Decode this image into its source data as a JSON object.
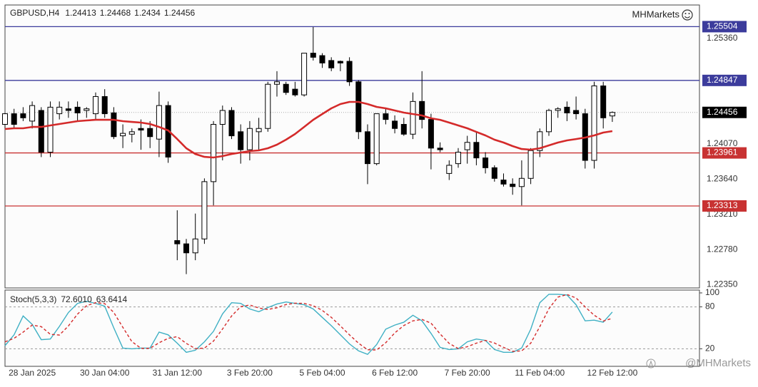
{
  "chart_data": [
    {
      "type": "candlestick",
      "title": "GBPUSD,H4",
      "brand": "MHMarkets",
      "watermark": "@MHMarkets",
      "categories": [
        null,
        null,
        null,
        "28 Jan 2025",
        null,
        null,
        null,
        null,
        null,
        null,
        null,
        "30 Jan 04:00",
        null,
        null,
        null,
        null,
        null,
        null,
        null,
        "31 Jan 12:00",
        null,
        null,
        null,
        null,
        null,
        null,
        null,
        "3 Feb 20:00",
        null,
        null,
        null,
        null,
        null,
        null,
        null,
        "5 Feb 04:00",
        null,
        null,
        null,
        null,
        null,
        null,
        null,
        "6 Feb 12:00",
        null,
        null,
        null,
        null,
        null,
        null,
        null,
        "7 Feb 20:00",
        null,
        null,
        null,
        null,
        null,
        null,
        null,
        "11 Feb 04:00",
        null,
        null,
        null,
        null,
        null,
        null,
        null,
        "12 Feb 12:00"
      ],
      "open": [
        1.2431,
        1.2444,
        1.2444,
        1.2435,
        1.2448,
        1.2397,
        1.2444,
        1.245,
        1.2452,
        1.2448,
        1.2444,
        1.2465,
        1.2445,
        1.2417,
        1.2419,
        1.2426,
        1.2426,
        1.2413,
        1.2454,
        1.2289,
        1.2285,
        1.2274,
        1.2291,
        1.2361,
        1.2431,
        1.2448,
        1.2422,
        1.24,
        1.2422,
        1.2426,
        1.248,
        1.248,
        1.2474,
        1.2467,
        1.2518,
        1.2515,
        1.2509,
        1.2508,
        1.2508,
        1.2483,
        1.2422,
        1.2383,
        1.2444,
        1.2435,
        1.2431,
        1.2419,
        1.2459,
        1.2437,
        1.2402,
        1.2371,
        1.2383,
        1.24,
        1.2409,
        1.239,
        1.2378,
        1.2363,
        1.2358,
        1.2355,
        1.2365,
        1.2399,
        1.2422,
        1.2448,
        1.2452,
        1.2448,
        1.2444,
        1.2387,
        1.2478,
        1.24413
      ],
      "high": [
        1.2445,
        1.245,
        1.2452,
        1.2459,
        1.2452,
        1.2459,
        1.2459,
        1.2459,
        1.2459,
        1.2452,
        1.247,
        1.2474,
        1.2452,
        1.2431,
        1.2426,
        1.2437,
        1.2435,
        1.2471,
        1.2459,
        1.2326,
        1.2291,
        1.2322,
        1.2365,
        1.2435,
        1.2454,
        1.2452,
        1.2431,
        1.2435,
        1.2439,
        1.2483,
        1.2496,
        1.2483,
        1.2483,
        1.2518,
        1.255,
        1.2518,
        1.2513,
        1.2509,
        1.2513,
        1.2485,
        1.2431,
        1.2444,
        1.245,
        1.2442,
        1.2439,
        1.247,
        1.2496,
        1.2444,
        1.2409,
        1.2387,
        1.2402,
        1.2417,
        1.2422,
        1.2397,
        1.2381,
        1.2371,
        1.2365,
        1.2387,
        1.2402,
        1.2426,
        1.245,
        1.2452,
        1.2459,
        1.2465,
        1.245,
        1.2483,
        1.2483,
        1.24468
      ],
      "low": [
        1.2426,
        1.2426,
        1.2435,
        1.2426,
        1.2391,
        1.2391,
        1.2437,
        1.2439,
        1.2435,
        1.2439,
        1.2437,
        1.2439,
        1.2413,
        1.2402,
        1.2409,
        1.24,
        1.2402,
        1.2391,
        1.2384,
        1.2265,
        1.2248,
        1.2265,
        1.2285,
        1.2332,
        1.2387,
        1.2413,
        1.2383,
        1.2387,
        1.2399,
        1.2422,
        1.2465,
        1.2467,
        1.2465,
        1.2465,
        1.2509,
        1.25,
        1.2496,
        1.2496,
        1.2478,
        1.2413,
        1.2358,
        1.2381,
        1.2431,
        1.242,
        1.2417,
        1.2413,
        1.2426,
        1.2376,
        1.2397,
        1.2363,
        1.2378,
        1.2383,
        1.2381,
        1.2371,
        1.2361,
        1.2355,
        1.2345,
        1.2332,
        1.2358,
        1.2391,
        1.2417,
        1.2439,
        1.2435,
        1.2437,
        1.2377,
        1.2377,
        1.2426,
        1.2434
      ],
      "close": [
        1.2444,
        1.2431,
        1.2439,
        1.2454,
        1.2397,
        1.2452,
        1.2452,
        1.2448,
        1.2445,
        1.245,
        1.2465,
        1.2444,
        1.2416,
        1.242,
        1.2422,
        1.2424,
        1.2416,
        1.2454,
        1.2391,
        1.2285,
        1.2274,
        1.2291,
        1.2361,
        1.2431,
        1.2448,
        1.2417,
        1.24,
        1.2426,
        1.2426,
        1.248,
        1.2483,
        1.247,
        1.2467,
        1.2518,
        1.2513,
        1.2506,
        1.25,
        1.2506,
        1.2483,
        1.2422,
        1.2383,
        1.2444,
        1.2437,
        1.2426,
        1.2419,
        1.2459,
        1.2437,
        1.2402,
        1.24,
        1.2381,
        1.2397,
        1.2409,
        1.239,
        1.2378,
        1.2365,
        1.2358,
        1.2355,
        1.2365,
        1.2399,
        1.2422,
        1.2448,
        1.245,
        1.2445,
        1.2444,
        1.2387,
        1.2478,
        1.2439,
        1.24456
      ],
      "up_color": "#ffffff",
      "down_color": "#000000",
      "ma": {
        "color": "#d42a2a",
        "values": [
          1.24253,
          1.24262,
          1.24262,
          1.24279,
          1.24279,
          1.24297,
          1.24314,
          1.24332,
          1.24349,
          1.24358,
          1.24366,
          1.24366,
          1.24366,
          1.24349,
          1.2434,
          1.24332,
          1.24314,
          1.24279,
          1.24236,
          1.24131,
          1.24018,
          1.23948,
          1.23913,
          1.23905,
          1.23922,
          1.23948,
          1.23966,
          1.23983,
          1.23992,
          1.24018,
          1.24062,
          1.24123,
          1.24192,
          1.24279,
          1.24366,
          1.24436,
          1.24506,
          1.24558,
          1.24584,
          1.24584,
          1.24558,
          1.24523,
          1.24506,
          1.2448,
          1.24454,
          1.24436,
          1.24419,
          1.24384,
          1.24366,
          1.24332,
          1.24297,
          1.24262,
          1.24218,
          1.24175,
          1.24123,
          1.24088,
          1.24044,
          1.24009,
          1.24001,
          1.24018,
          1.24053,
          1.24088,
          1.24114,
          1.24131,
          1.24149,
          1.24175,
          1.2421,
          1.24227
        ]
      },
      "levels": [
        {
          "value": 1.25504,
          "color": "#3c3c9c"
        },
        {
          "value": 1.24847,
          "color": "#3c3c9c"
        },
        {
          "value": 1.23961,
          "color": "#c83232"
        },
        {
          "value": 1.23313,
          "color": "#c83232"
        }
      ],
      "last_price_color": "#000000",
      "ylim": [
        1.2232,
        1.2576
      ],
      "yticks": [
        {
          "value": 1.2235,
          "label": "1.22350"
        },
        {
          "value": 1.2278,
          "label": "1.22780"
        },
        {
          "value": 1.2321,
          "label": "1.23210"
        },
        {
          "value": 1.2364,
          "label": "1.23640"
        },
        {
          "value": 1.2407,
          "label": "1.24070"
        },
        {
          "value": 1.2536,
          "label": "1.25360"
        }
      ]
    },
    {
      "type": "line",
      "title": "Stoch(5,3,3)",
      "series": [
        {
          "color": "#3fb0c4",
          "dashed": false,
          "values": [
            24.5,
            40,
            67,
            55,
            33,
            34,
            52,
            72,
            85,
            88,
            85,
            81,
            50,
            21,
            20,
            21,
            21,
            44,
            40,
            28,
            15,
            18,
            30,
            45,
            70,
            86,
            85,
            77,
            73,
            79,
            84,
            87,
            85,
            83,
            77,
            65,
            53,
            40,
            27,
            17,
            12,
            26,
            48,
            54,
            58,
            68,
            60,
            42,
            22,
            19,
            20,
            30,
            34,
            32,
            19,
            15,
            15,
            21,
            48,
            86,
            98,
            98,
            97,
            83,
            60,
            61,
            58,
            72.601
          ],
          "value_labels": [
            null,
            null,
            null,
            null,
            null,
            null,
            null,
            null,
            null,
            null,
            null,
            null,
            null,
            null,
            null,
            null,
            null,
            null,
            null,
            null,
            null,
            null,
            null,
            null,
            null,
            null,
            null,
            null,
            null,
            null,
            null,
            null,
            null,
            null,
            null,
            null,
            null,
            null,
            null,
            null,
            null,
            null,
            null,
            null,
            null,
            null,
            null,
            null,
            null,
            null,
            null,
            null,
            null,
            null,
            null,
            null,
            null,
            null,
            null,
            null,
            null,
            null,
            null,
            null,
            null,
            null,
            null,
            "72.6010"
          ]
        },
        {
          "color": "#d42a2a",
          "dashed": true,
          "values": [
            30,
            35,
            43.8,
            54,
            51.7,
            40.7,
            39.7,
            52.7,
            69.7,
            81.7,
            86,
            84.7,
            72,
            50.7,
            30.3,
            20.7,
            20.7,
            28.7,
            35,
            37.3,
            27.7,
            20.3,
            21,
            31,
            48.3,
            67,
            80.3,
            82.7,
            78.3,
            76.3,
            78.7,
            83.3,
            85.3,
            85,
            81.7,
            75,
            65,
            52.7,
            40,
            28,
            18.7,
            18.3,
            28.7,
            42.7,
            53.3,
            60,
            62,
            56.7,
            41.3,
            27.7,
            20.3,
            23,
            28,
            32,
            28.3,
            22,
            16.3,
            17,
            28,
            51.7,
            77.3,
            94,
            97.7,
            92.7,
            80,
            68,
            59.7,
            63.6414
          ],
          "value_labels": [
            null,
            null,
            null,
            null,
            null,
            null,
            null,
            null,
            null,
            null,
            null,
            null,
            null,
            null,
            null,
            null,
            null,
            null,
            null,
            null,
            null,
            null,
            null,
            null,
            null,
            null,
            null,
            null,
            null,
            null,
            null,
            null,
            null,
            null,
            null,
            null,
            null,
            null,
            null,
            null,
            null,
            null,
            null,
            null,
            null,
            null,
            null,
            null,
            null,
            null,
            null,
            null,
            null,
            null,
            null,
            null,
            null,
            null,
            null,
            null,
            null,
            null,
            null,
            null,
            null,
            null,
            null,
            "63.6414"
          ]
        }
      ],
      "levels": [
        20,
        80
      ],
      "ylim": [
        0,
        102
      ],
      "yticks": [
        20,
        80,
        100
      ]
    }
  ]
}
